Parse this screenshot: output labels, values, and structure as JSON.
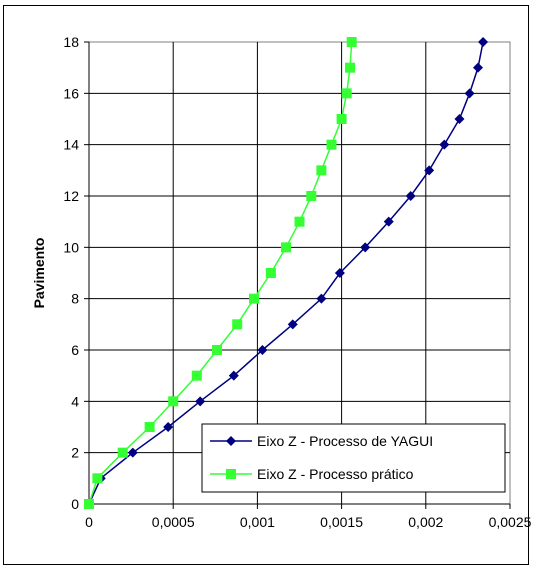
{
  "chart_data": {
    "type": "line",
    "title": "",
    "xlabel": "",
    "ylabel": "Pavimento",
    "xlim": [
      0,
      0.0025
    ],
    "ylim": [
      0,
      18
    ],
    "grid": true,
    "legend_position": "bottom-right",
    "x_ticks": [
      "0",
      "0,0005",
      "0,001",
      "0,0015",
      "0,002",
      "0,0025"
    ],
    "y_ticks": [
      "0",
      "2",
      "4",
      "6",
      "8",
      "10",
      "12",
      "14",
      "16",
      "18"
    ],
    "series": [
      {
        "name": "Eixo Z - Processo de YAGUI",
        "color": "#000080",
        "marker": "diamond",
        "points": [
          [
            0,
            0
          ],
          [
            7e-05,
            1
          ],
          [
            0.00026,
            2
          ],
          [
            0.00047,
            3
          ],
          [
            0.00066,
            4
          ],
          [
            0.00086,
            5
          ],
          [
            0.00103,
            6
          ],
          [
            0.00121,
            7
          ],
          [
            0.00138,
            8
          ],
          [
            0.00149,
            9
          ],
          [
            0.00164,
            10
          ],
          [
            0.00178,
            11
          ],
          [
            0.00191,
            12
          ],
          [
            0.00202,
            13
          ],
          [
            0.00211,
            14
          ],
          [
            0.0022,
            15
          ],
          [
            0.00226,
            16
          ],
          [
            0.00231,
            17
          ],
          [
            0.00234,
            18
          ]
        ]
      },
      {
        "name": "Eixo Z - Processo prático",
        "color": "#33ff33",
        "marker": "square",
        "points": [
          [
            0,
            0
          ],
          [
            5e-05,
            1
          ],
          [
            0.0002,
            2
          ],
          [
            0.00036,
            3
          ],
          [
            0.0005,
            4
          ],
          [
            0.00064,
            5
          ],
          [
            0.00076,
            6
          ],
          [
            0.00088,
            7
          ],
          [
            0.00098,
            8
          ],
          [
            0.00108,
            9
          ],
          [
            0.00117,
            10
          ],
          [
            0.00125,
            11
          ],
          [
            0.00132,
            12
          ],
          [
            0.00138,
            13
          ],
          [
            0.00144,
            14
          ],
          [
            0.0015,
            15
          ],
          [
            0.00153,
            16
          ],
          [
            0.00155,
            17
          ],
          [
            0.00156,
            18
          ]
        ]
      }
    ]
  }
}
